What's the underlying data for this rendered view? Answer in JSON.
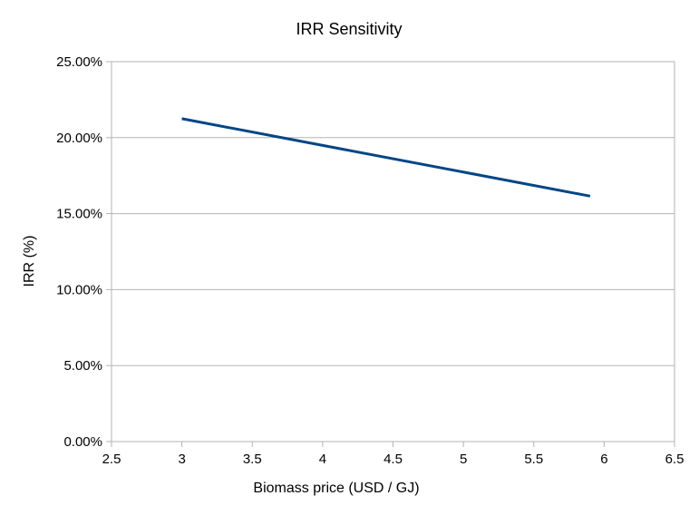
{
  "chart_data": {
    "type": "line",
    "title": "IRR Sensitivity",
    "xlabel": "Biomass price (USD / GJ)",
    "ylabel": "IRR (%)",
    "xlim": [
      2.5,
      6.5
    ],
    "ylim": [
      0,
      0.25
    ],
    "x_ticks": [
      2.5,
      3,
      3.5,
      4,
      4.5,
      5,
      5.5,
      6,
      6.5
    ],
    "x_tick_labels": [
      "2.5",
      "3",
      "3.5",
      "4",
      "4.5",
      "5",
      "5.5",
      "6",
      "6.5"
    ],
    "y_ticks": [
      0,
      0.05,
      0.1,
      0.15,
      0.2,
      0.25
    ],
    "y_tick_labels": [
      "0.00%",
      "5.00%",
      "10.00%",
      "15.00%",
      "20.00%",
      "25.00%"
    ],
    "grid": true,
    "legend": "none",
    "series": [
      {
        "color": "#004586",
        "x": [
          3,
          5.9
        ],
        "y": [
          0.2125,
          0.1615
        ]
      }
    ]
  }
}
